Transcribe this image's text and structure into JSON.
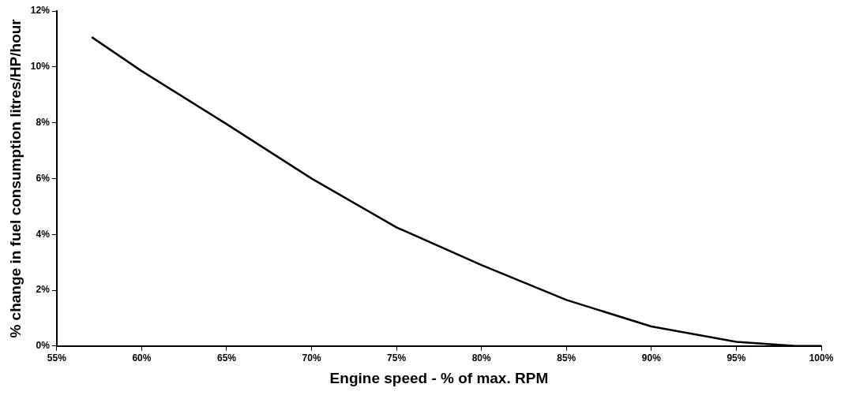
{
  "chart_data": {
    "type": "line",
    "xlabel": "Engine speed - % of max. RPM",
    "ylabel": "% change in fuel consumption litres/HP/hour",
    "x": [
      57.1,
      60,
      65,
      70,
      75,
      80,
      85,
      90,
      95,
      98.5,
      100
    ],
    "series": [
      {
        "color": "#000000",
        "values": [
          11.05,
          9.85,
          7.95,
          6.0,
          4.25,
          2.9,
          1.65,
          0.7,
          0.15,
          0,
          0
        ]
      }
    ],
    "xlim": [
      55,
      100
    ],
    "xticks": [
      {
        "value": 55,
        "label": "55%"
      },
      {
        "value": 60,
        "label": "60%"
      },
      {
        "value": 65,
        "label": "65%"
      },
      {
        "value": 70,
        "label": "70%"
      },
      {
        "value": 75,
        "label": "75%"
      },
      {
        "value": 80,
        "label": "80%"
      },
      {
        "value": 85,
        "label": "85%"
      },
      {
        "value": 90,
        "label": "90%"
      },
      {
        "value": 95,
        "label": "95%"
      },
      {
        "value": 100,
        "label": "100%"
      }
    ],
    "ylim": [
      0,
      12
    ],
    "yticks": [
      {
        "value": 0,
        "label": "0%"
      },
      {
        "value": 2,
        "label": "2%"
      },
      {
        "value": 4,
        "label": "4%"
      },
      {
        "value": 6,
        "label": "6%"
      },
      {
        "value": 8,
        "label": "8%"
      },
      {
        "value": 10,
        "label": "10%"
      },
      {
        "value": 12,
        "label": "12%"
      }
    ],
    "grid": false,
    "legend": false,
    "marker": "none",
    "line_style": "solid"
  }
}
